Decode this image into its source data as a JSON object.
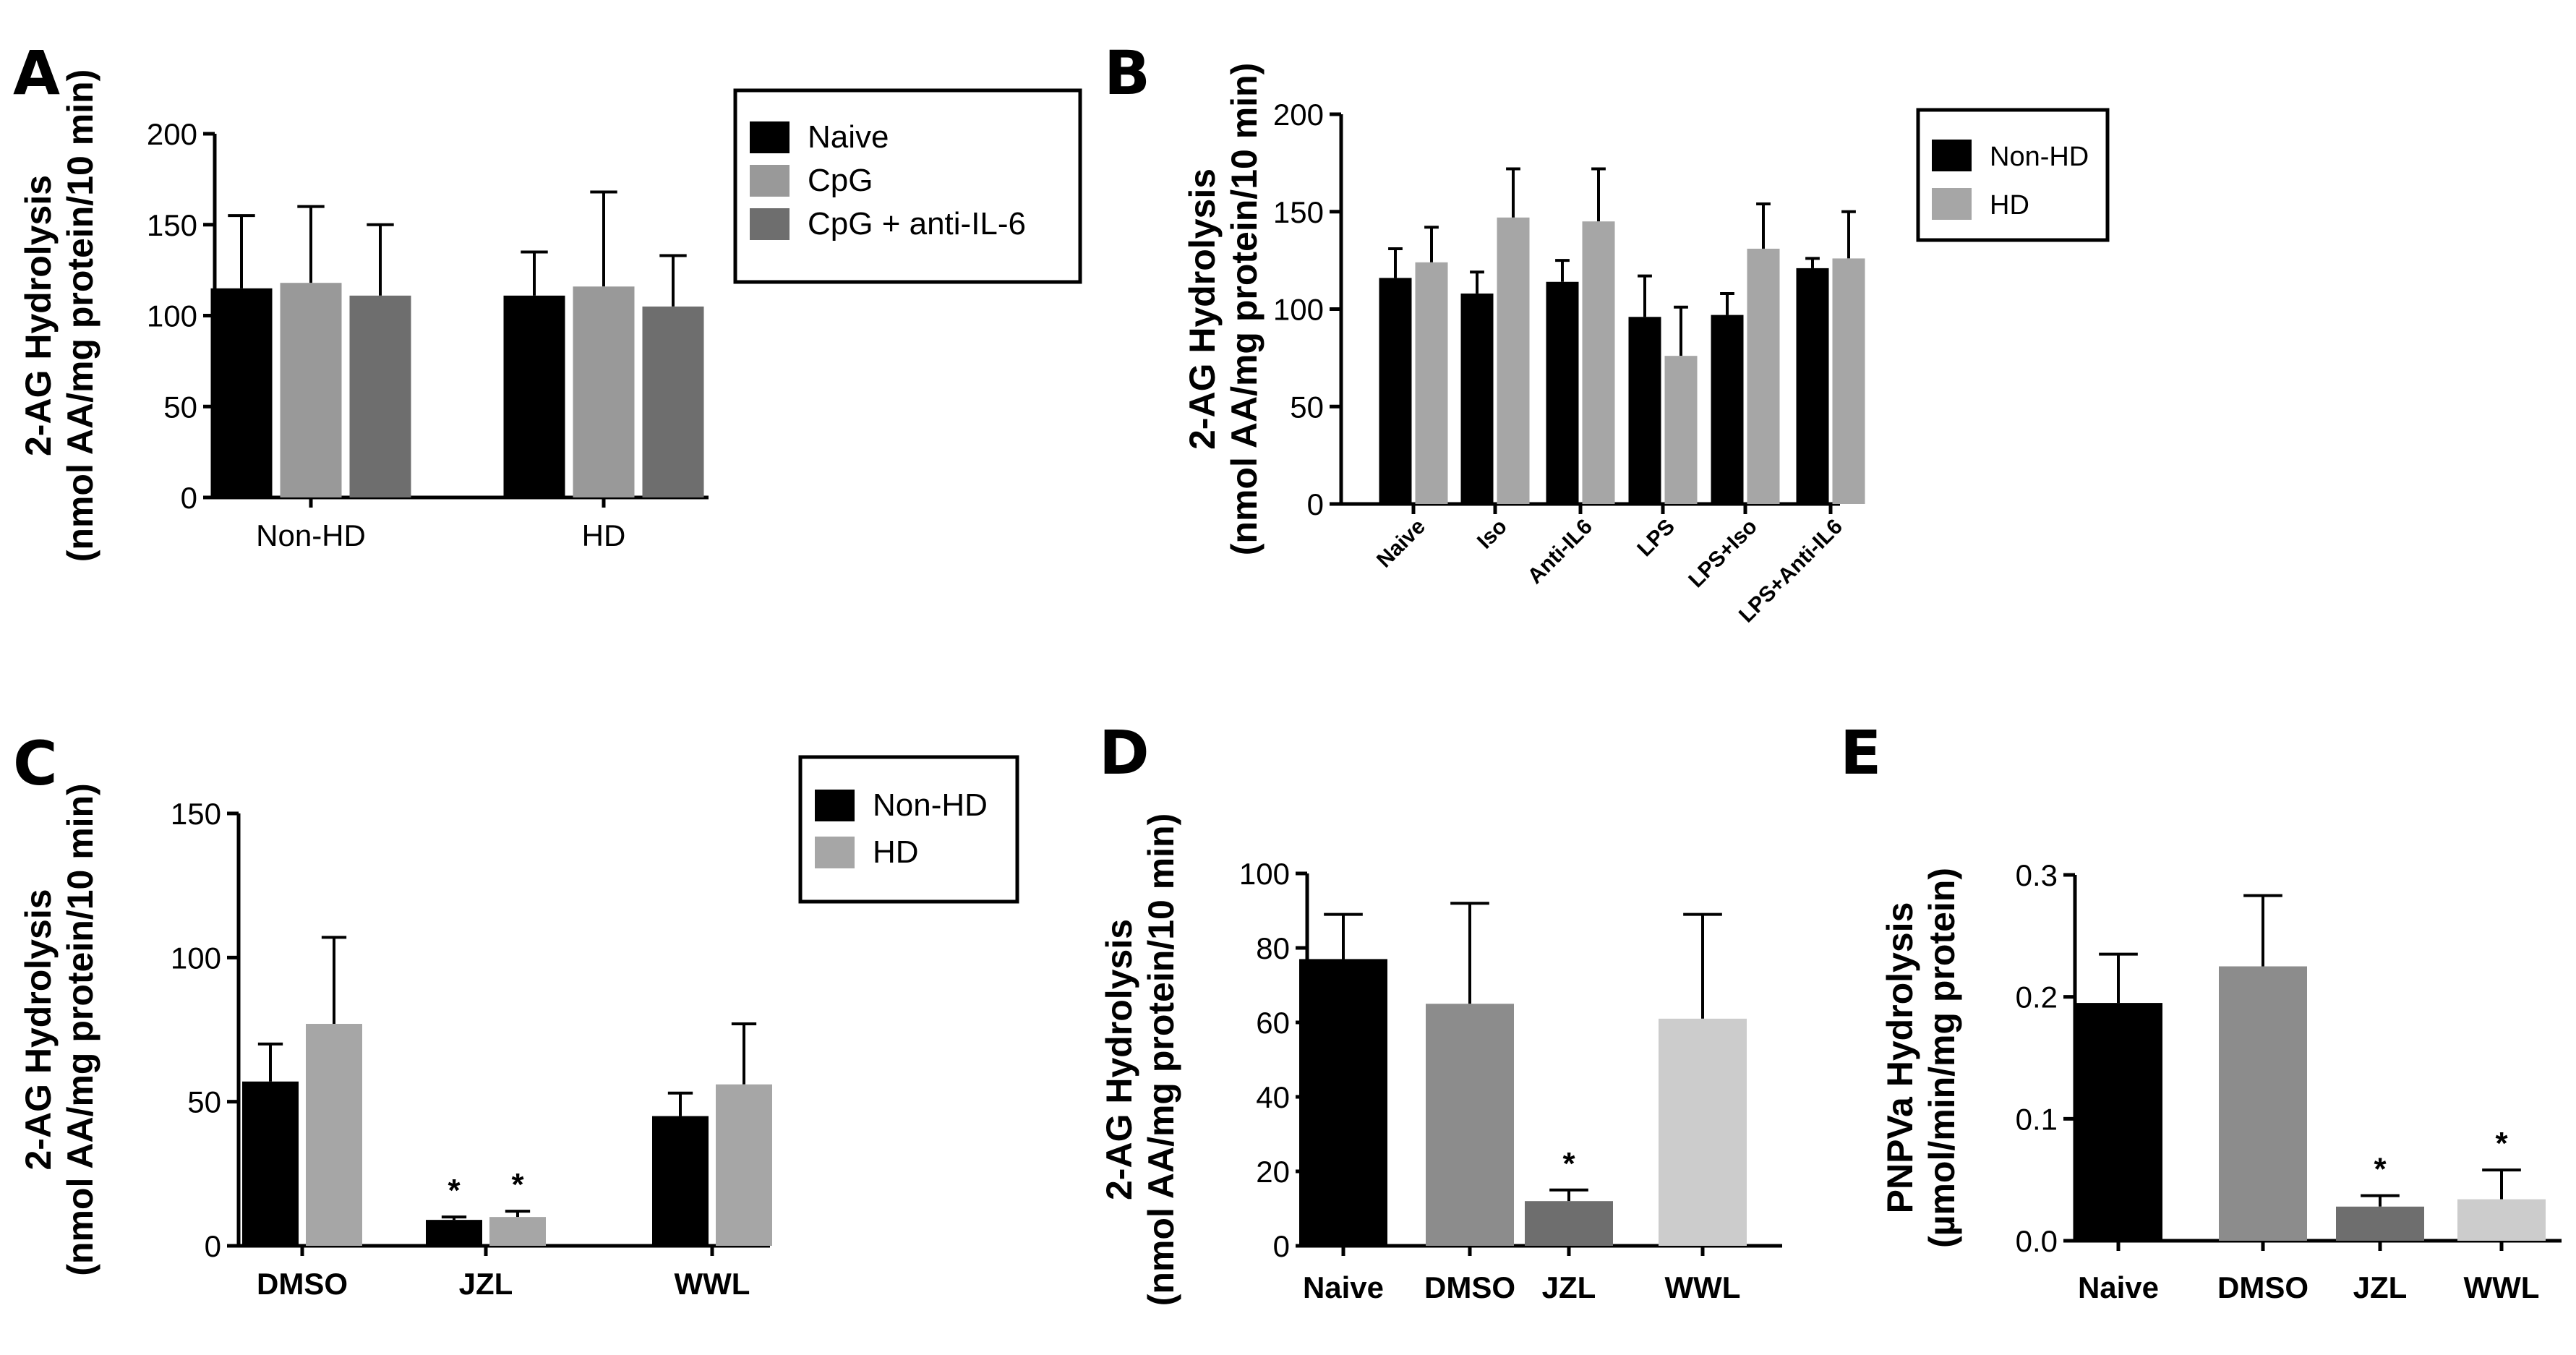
{
  "chart_data": [
    {
      "panel": "A",
      "type": "bar",
      "ylabel_line1": "2-AG Hydrolysis",
      "ylabel_line2": "(nmol AA/mg protein/10 min)",
      "ylim": [
        0,
        200
      ],
      "yticks": [
        0,
        50,
        100,
        150,
        200
      ],
      "categories": [
        "Non-HD",
        "HD"
      ],
      "series": [
        {
          "name": "Naive",
          "color": "#000000",
          "values": [
            115,
            111
          ],
          "errors": [
            40,
            24
          ]
        },
        {
          "name": "CpG",
          "color": "#999999",
          "values": [
            118,
            116
          ],
          "errors": [
            42,
            52
          ]
        },
        {
          "name": "CpG + anti-IL-6",
          "color": "#6e6e6e",
          "values": [
            111,
            105
          ],
          "errors": [
            39,
            28
          ]
        }
      ],
      "legend": "top-right"
    },
    {
      "panel": "B",
      "type": "bar",
      "ylabel_line1": "2-AG Hydrolysis",
      "ylabel_line2": "(nmol AA/mg protein/10 min)",
      "ylim": [
        0,
        200
      ],
      "yticks": [
        0,
        50,
        100,
        150,
        200
      ],
      "categories": [
        "Naive",
        "Iso",
        "Anti-IL6",
        "LPS",
        "LPS+Iso",
        "LPS+Anti-IL6"
      ],
      "series": [
        {
          "name": "Non-HD",
          "color": "#000000",
          "values": [
            116,
            108,
            114,
            96,
            97,
            121
          ],
          "errors": [
            15,
            11,
            11,
            21,
            11,
            5
          ]
        },
        {
          "name": "HD",
          "color": "#a6a6a6",
          "values": [
            124,
            147,
            145,
            76,
            131,
            126
          ],
          "errors": [
            18,
            25,
            27,
            25,
            23,
            24
          ]
        }
      ],
      "legend": "top-right"
    },
    {
      "panel": "C",
      "type": "bar",
      "ylabel_line1": "2-AG Hydrolysis",
      "ylabel_line2": "(nmol AA/mg protein/10 min)",
      "ylim": [
        0,
        150
      ],
      "yticks": [
        0,
        50,
        100,
        150
      ],
      "categories": [
        "DMSO",
        "JZL",
        "WWL"
      ],
      "series": [
        {
          "name": "Non-HD",
          "color": "#000000",
          "values": [
            57,
            9,
            45
          ],
          "errors": [
            13,
            1,
            8
          ],
          "significant": [
            false,
            true,
            false
          ]
        },
        {
          "name": "HD",
          "color": "#a6a6a6",
          "values": [
            77,
            10,
            56
          ],
          "errors": [
            30,
            2,
            21
          ],
          "significant": [
            false,
            true,
            false
          ]
        }
      ],
      "significance_symbol": "*",
      "legend": "top-right"
    },
    {
      "panel": "D",
      "type": "bar",
      "ylabel_line1": "2-AG Hydrolysis",
      "ylabel_line2": "(nmol AA/mg protein/10 min)",
      "ylim": [
        0,
        100
      ],
      "yticks": [
        0,
        20,
        40,
        60,
        80,
        100
      ],
      "categories": [
        "Naive",
        "DMSO",
        "JZL",
        "WWL"
      ],
      "values": [
        77,
        65,
        12,
        61
      ],
      "errors": [
        12,
        27,
        3,
        28
      ],
      "colors": [
        "#000000",
        "#8c8c8c",
        "#6e6e6e",
        "#cccccc"
      ],
      "significant": [
        false,
        false,
        true,
        false
      ],
      "significance_symbol": "*"
    },
    {
      "panel": "E",
      "type": "bar",
      "ylabel_line1": "PNPVa Hydrolysis",
      "ylabel_line2": "(µmol/min/mg protein)",
      "ylim": [
        0,
        0.3
      ],
      "yticks": [
        0.0,
        0.1,
        0.2,
        0.3
      ],
      "ytick_labels": [
        "0.0",
        "0.1",
        "0.2",
        "0.3"
      ],
      "categories": [
        "Naive",
        "DMSO",
        "JZL",
        "WWL"
      ],
      "values": [
        0.195,
        0.225,
        0.028,
        0.034
      ],
      "errors": [
        0.04,
        0.058,
        0.009,
        0.024
      ],
      "colors": [
        "#000000",
        "#8c8c8c",
        "#6e6e6e",
        "#cccccc"
      ],
      "significant": [
        false,
        false,
        true,
        true
      ],
      "significance_symbol": "*"
    }
  ]
}
